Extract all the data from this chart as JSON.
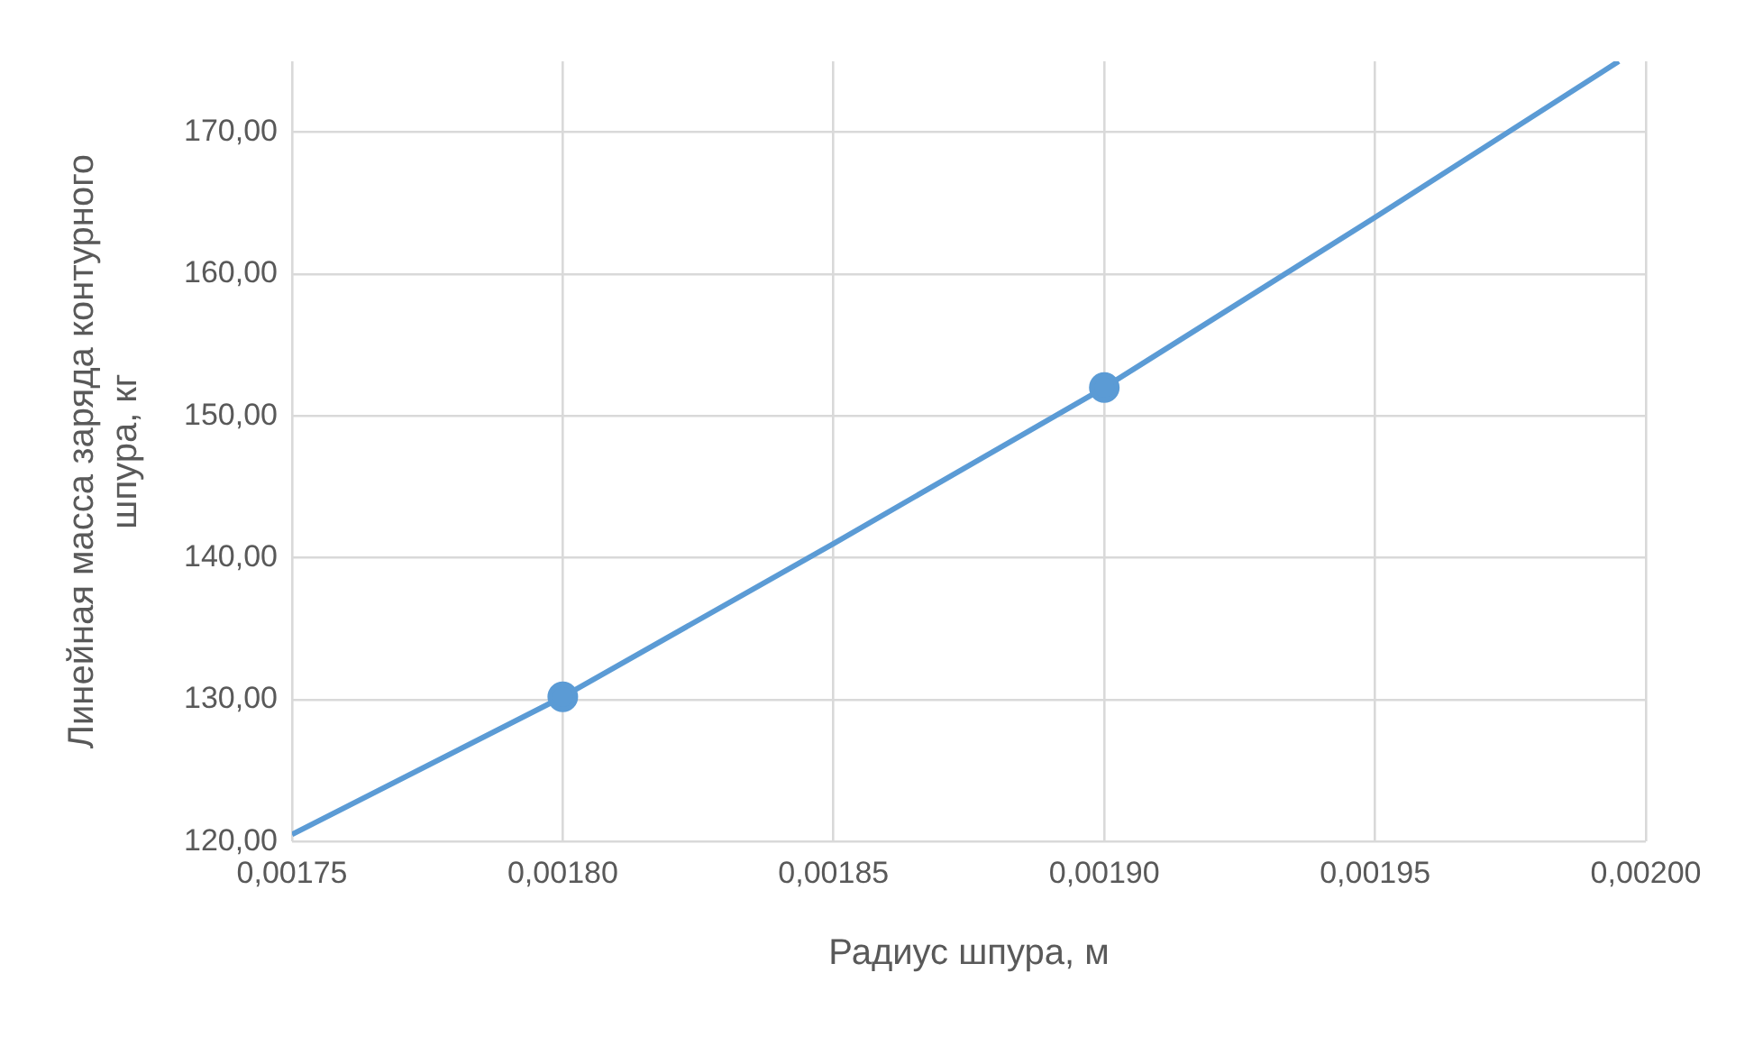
{
  "chart_data": {
    "type": "scatter",
    "xlabel": "Радиус шпура, м",
    "ylabel": "Линейная масса заряда контурного шпура, кг",
    "series": [
      {
        "type": "line",
        "color": "#5b9bd5",
        "marker": "none",
        "x": [
          0.00175,
          0.0018,
          0.00185,
          0.0019,
          0.00195,
          0.001995
        ],
        "values": [
          120.5,
          130.2,
          141,
          152,
          164,
          175
        ]
      },
      {
        "color": "#5b9bd5",
        "marker": "circle",
        "x": [
          0.0018,
          0.0019
        ],
        "values": [
          130.2,
          152
        ]
      }
    ],
    "xlim": [
      0.00175,
      0.002
    ],
    "xticks": [
      {
        "value": 0.00175,
        "label": "0,00175"
      },
      {
        "value": 0.0018,
        "label": "0,00180"
      },
      {
        "value": 0.00185,
        "label": "0,00185"
      },
      {
        "value": 0.0019,
        "label": "0,00190"
      },
      {
        "value": 0.00195,
        "label": "0,00195"
      },
      {
        "value": 0.002,
        "label": "0,00200"
      }
    ],
    "ylim": [
      120,
      175
    ],
    "yticks": [
      {
        "value": 120,
        "label": "120,00"
      },
      {
        "value": 130,
        "label": "130,00"
      },
      {
        "value": 140,
        "label": "140,00"
      },
      {
        "value": 150,
        "label": "150,00"
      },
      {
        "value": 160,
        "label": "160,00"
      },
      {
        "value": 170,
        "label": "170,00"
      }
    ],
    "grid": true,
    "legend": false
  }
}
